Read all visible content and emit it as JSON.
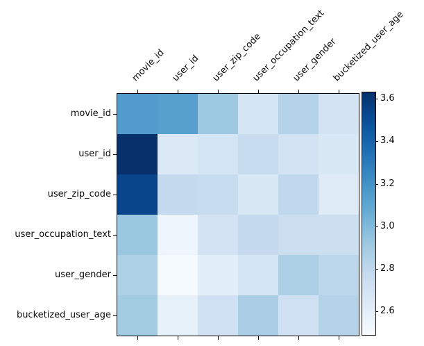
{
  "figure": {
    "background": "#ffffff",
    "text_color": "#0a0a0a",
    "max_color": "#08306b",
    "min_color": "#f7fbff"
  },
  "chart_data": {
    "type": "heatmap",
    "title": "",
    "xlabel": "",
    "ylabel": "",
    "colormap": "Blues",
    "x_categories": [
      "movie_id",
      "user_id",
      "user_zip_code",
      "user_occupation_text",
      "user_gender",
      "bucketized_user_age"
    ],
    "y_categories": [
      "movie_id",
      "user_id",
      "user_zip_code",
      "user_occupation_text",
      "user_gender",
      "bucketized_user_age"
    ],
    "matrix": [
      [
        3.15,
        3.13,
        2.92,
        2.69,
        2.84,
        2.7
      ],
      [
        3.63,
        2.65,
        2.69,
        2.77,
        2.7,
        2.66
      ],
      [
        3.54,
        2.78,
        2.77,
        2.66,
        2.8,
        2.63
      ],
      [
        2.93,
        2.54,
        2.7,
        2.78,
        2.74,
        2.74
      ],
      [
        2.86,
        2.5,
        2.61,
        2.69,
        2.87,
        2.81
      ],
      [
        2.9,
        2.58,
        2.73,
        2.88,
        2.73,
        2.84
      ]
    ],
    "vmin": 2.49,
    "vmax": 3.63,
    "colorbar": {
      "position": "right",
      "ticks": [
        2.6,
        2.8,
        3.0,
        3.2,
        3.4,
        3.6
      ]
    },
    "grid": false,
    "legend": false
  }
}
